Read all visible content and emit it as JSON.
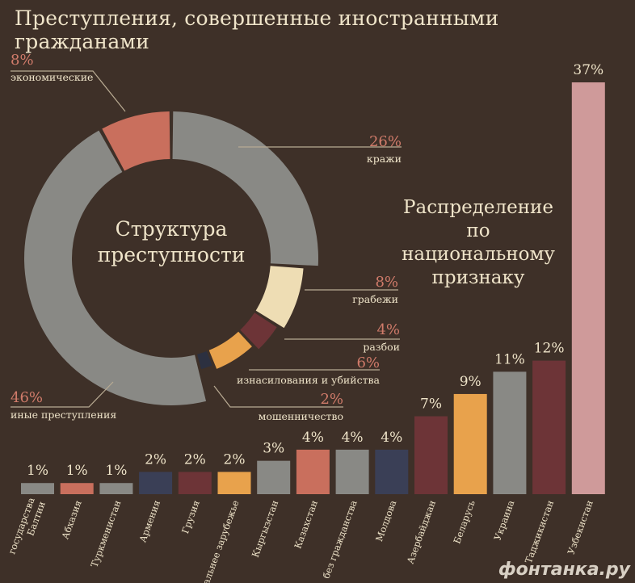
{
  "title": "Преступления, совершенные иностранными гражданами",
  "watermark": "фонтанка.ру",
  "colors": {
    "background": "#3e3028",
    "label_red": "#d07b6a",
    "text_light": "#efe4c9",
    "gray": "#898985",
    "salmon": "#c96f5d",
    "navy": "#3a3f56",
    "maroon": "#6d3437",
    "orange": "#e8a24c",
    "cream": "#eeddb4",
    "pink": "#cf9a9a",
    "dark_navy": "#2c3040"
  },
  "chart_data": [
    {
      "type": "pie",
      "center_label": "Структура преступности",
      "slices": [
        {
          "label": "кражи",
          "value_label": "26%",
          "value": 26,
          "color": "#898985"
        },
        {
          "label": "грабежи",
          "value_label": "8%",
          "value": 8,
          "color": "#eeddb4"
        },
        {
          "label": "разбои",
          "value_label": "4%",
          "value": 4,
          "color": "#6d3437"
        },
        {
          "label": "изнасилования и убийства",
          "value_label": "6%",
          "value": 6,
          "color": "#e8a24c"
        },
        {
          "label": "мошенничество",
          "value_label": "2%",
          "value": 2,
          "color": "#2c3040"
        },
        {
          "label": "иные преступления",
          "value_label": "46%",
          "value": 46,
          "color": "#898985"
        },
        {
          "label": "экономические",
          "value_label": "8%",
          "value": 8,
          "color": "#c96f5d"
        }
      ]
    },
    {
      "type": "bar",
      "title": "Распределение по национальному признаку",
      "categories": [
        "государства Балтии",
        "Абхазия",
        "Туркменистан",
        "Армения",
        "Грузия",
        "дальнее зарубежье",
        "Кыргызстан",
        "Казахстан",
        "без гражданства",
        "Молдова",
        "Азербайджан",
        "Беларусь",
        "Украина",
        "Таджикистан",
        "Узбекистан"
      ],
      "category_lines": [
        [
          "государства",
          "Балтии"
        ],
        [
          "Абхазия"
        ],
        [
          "Туркменистан"
        ],
        [
          "Армения"
        ],
        [
          "Грузия"
        ],
        [
          "дальнее зарубежье"
        ],
        [
          "Кыргызстан"
        ],
        [
          "Казахстан"
        ],
        [
          "без гражданства"
        ],
        [
          "Молдова"
        ],
        [
          "Азербайджан"
        ],
        [
          "Беларусь"
        ],
        [
          "Украина"
        ],
        [
          "Таджикистан"
        ],
        [
          "Узбекистан"
        ]
      ],
      "values": [
        1,
        1,
        1,
        2,
        2,
        2,
        3,
        4,
        4,
        4,
        7,
        9,
        11,
        12,
        37
      ],
      "value_labels": [
        "1%",
        "1%",
        "1%",
        "2%",
        "2%",
        "2%",
        "3%",
        "4%",
        "4%",
        "4%",
        "7%",
        "9%",
        "11%",
        "12%",
        "37%"
      ],
      "bar_colors": [
        "#898985",
        "#c96f5d",
        "#898985",
        "#3a3f56",
        "#6d3437",
        "#e8a24c",
        "#898985",
        "#c96f5d",
        "#898985",
        "#3a3f56",
        "#6d3437",
        "#e8a24c",
        "#898985",
        "#6d3437",
        "#cf9a9a"
      ]
    }
  ]
}
